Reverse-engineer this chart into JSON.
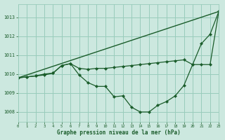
{
  "bg_color": "#cce8df",
  "grid_color": "#99ccbb",
  "line_color": "#1a5c2a",
  "title": "Graphe pression niveau de la mer (hPa)",
  "xlim": [
    0,
    23
  ],
  "ylim": [
    1007.5,
    1013.7
  ],
  "yticks": [
    1008,
    1009,
    1010,
    1011,
    1012,
    1013
  ],
  "xticks": [
    0,
    1,
    2,
    3,
    4,
    5,
    6,
    7,
    8,
    9,
    10,
    11,
    12,
    13,
    14,
    15,
    16,
    17,
    18,
    19,
    20,
    21,
    22,
    23
  ],
  "line1_x": [
    0,
    23
  ],
  "line1_y": [
    1009.8,
    1013.3
  ],
  "line2_x": [
    0,
    1,
    2,
    3,
    4,
    5,
    6,
    7,
    8,
    9,
    10,
    11,
    12,
    13,
    14,
    15,
    16,
    17,
    18,
    19,
    20,
    21,
    22,
    23
  ],
  "line2_y": [
    1009.8,
    1009.85,
    1009.9,
    1009.95,
    1010.05,
    1010.45,
    1010.55,
    1010.3,
    1010.25,
    1010.3,
    1010.3,
    1010.35,
    1010.4,
    1010.45,
    1010.5,
    1010.55,
    1010.6,
    1010.65,
    1010.7,
    1010.75,
    1010.5,
    1011.6,
    1012.1,
    1013.3
  ],
  "line3_x": [
    0,
    1,
    2,
    3,
    4,
    5,
    6,
    7,
    8,
    9,
    10,
    11,
    12,
    13,
    14,
    15,
    16,
    17,
    18,
    19,
    20,
    21,
    22,
    23
  ],
  "line3_y": [
    1009.8,
    1009.85,
    1009.9,
    1010.0,
    1010.05,
    1010.45,
    1010.55,
    1009.95,
    1009.55,
    1009.35,
    1009.35,
    1008.8,
    1008.85,
    1008.25,
    1008.0,
    1008.0,
    1008.35,
    1008.55,
    1008.85,
    1009.4,
    1010.5,
    1010.5,
    1010.5,
    1013.3
  ]
}
